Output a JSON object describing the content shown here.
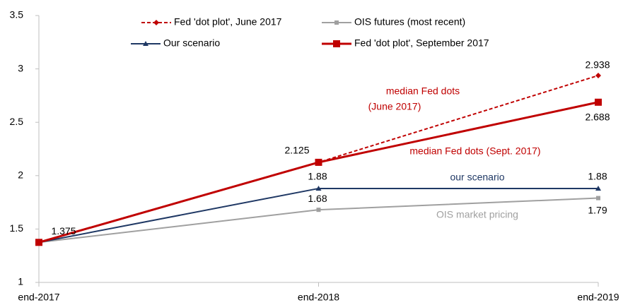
{
  "chart_data": {
    "type": "line",
    "categories": [
      "end-2017",
      "end-2018",
      "end-2019"
    ],
    "series": [
      {
        "name": "Fed 'dot plot', June 2017",
        "color": "#c00000",
        "dash": true,
        "marker": "diamond",
        "values": [
          1.375,
          2.125,
          2.938
        ],
        "value_labels": [
          null,
          null,
          "2.938"
        ]
      },
      {
        "name": "OIS futures (most recent)",
        "color": "#a0a0a0",
        "dash": false,
        "marker": "square-small",
        "values": [
          1.375,
          1.68,
          1.79
        ],
        "value_labels": [
          null,
          "1.68",
          "1.79"
        ]
      },
      {
        "name": "Our scenario",
        "color": "#1f3864",
        "dash": false,
        "marker": "triangle",
        "values": [
          1.375,
          1.88,
          1.88
        ],
        "value_labels": [
          null,
          "1.88",
          "1.88"
        ]
      },
      {
        "name": "Fed 'dot plot', September 2017",
        "color": "#c00000",
        "dash": false,
        "marker": "square",
        "values": [
          1.375,
          2.125,
          2.688
        ],
        "value_labels": [
          "1.375",
          "2.125",
          "2.688"
        ]
      }
    ],
    "annotations": [
      {
        "lines": [
          "median Fed dots",
          "(June 2017)"
        ],
        "color": "#c00000"
      },
      {
        "lines": [
          "median Fed dots (Sept. 2017)"
        ],
        "color": "#c00000"
      },
      {
        "lines": [
          "our scenario"
        ],
        "color": "#1f3864"
      },
      {
        "lines": [
          "OIS market pricing"
        ],
        "color": "#a0a0a0"
      }
    ],
    "ylim": [
      1,
      3.5
    ],
    "yticks": [
      1,
      1.5,
      2,
      2.5,
      3,
      3.5
    ],
    "grid": false,
    "legend": "top"
  }
}
